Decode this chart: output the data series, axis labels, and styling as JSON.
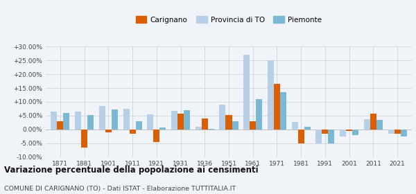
{
  "years": [
    1871,
    1881,
    1901,
    1911,
    1921,
    1931,
    1936,
    1951,
    1961,
    1971,
    1981,
    1991,
    2001,
    2011,
    2021
  ],
  "carignano": [
    3.0,
    -6.5,
    -1.0,
    -1.5,
    -4.5,
    5.8,
    4.0,
    5.2,
    3.0,
    16.5,
    -5.0,
    -1.5,
    -0.5,
    5.8,
    -1.5
  ],
  "provincia_to": [
    6.5,
    6.5,
    8.5,
    7.5,
    5.5,
    6.8,
    1.0,
    9.0,
    27.0,
    25.0,
    2.8,
    -5.0,
    -2.5,
    3.8,
    -1.5
  ],
  "piemonte": [
    6.0,
    5.2,
    7.2,
    3.0,
    0.8,
    7.0,
    0.2,
    3.0,
    11.0,
    13.5,
    1.0,
    -5.0,
    -2.0,
    3.5,
    -2.5
  ],
  "color_carignano": "#d95f02",
  "color_provincia": "#b8cfe8",
  "color_piemonte": "#7ab8d4",
  "title": "Variazione percentuale della popolazione ai censimenti",
  "subtitle": "COMUNE DI CARIGNANO (TO) - Dati ISTAT - Elaborazione TUTTITALIA.IT",
  "ylim": [
    -10,
    30
  ],
  "yticks": [
    -10,
    -5,
    0,
    5,
    10,
    15,
    20,
    25,
    30
  ],
  "bg_color": "#f0f4f8"
}
